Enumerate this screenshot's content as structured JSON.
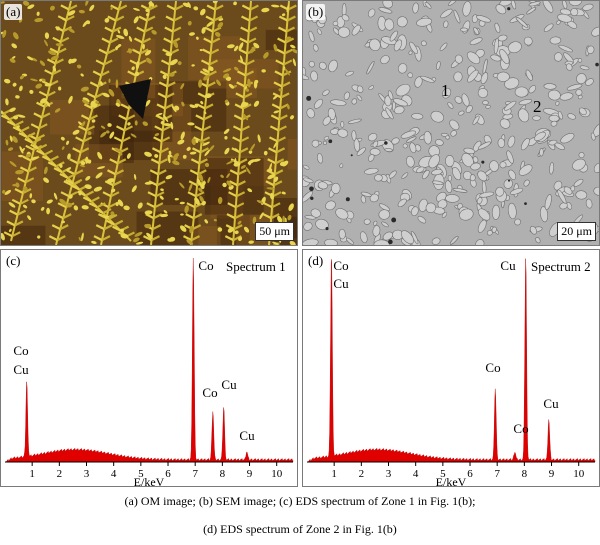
{
  "panels": {
    "a": {
      "label": "(a)",
      "scale_bar": "50 μm"
    },
    "b": {
      "label": "(b)",
      "scale_bar": "20 μm",
      "zone_1": "1",
      "zone_2": "2"
    },
    "c": {
      "label": "(c)"
    },
    "d": {
      "label": "(d)"
    }
  },
  "chart_data": [
    {
      "type": "area",
      "title": "Spectrum 1",
      "xlabel": "E/keV",
      "xlim": [
        0,
        10.6
      ],
      "xticks": [
        1,
        2,
        3,
        4,
        5,
        6,
        7,
        8,
        9,
        10
      ],
      "peaks": [
        {
          "x": 0.8,
          "height": 0.37
        },
        {
          "x": 6.93,
          "height": 1.0
        },
        {
          "x": 7.65,
          "height": 0.24
        },
        {
          "x": 8.05,
          "height": 0.26
        },
        {
          "x": 8.9,
          "height": 0.04
        }
      ],
      "peak_labels": [
        {
          "text": "Co",
          "x": 0.8,
          "line": 1
        },
        {
          "text": "Cu",
          "x": 0.8,
          "line": 2
        },
        {
          "text": "Co",
          "x": 6.93,
          "line": 0
        },
        {
          "text": "Co",
          "x": 7.5,
          "line": 0
        },
        {
          "text": "Cu",
          "x": 8.1,
          "line": 0
        },
        {
          "text": "Cu",
          "x": 8.9,
          "line": 0
        }
      ]
    },
    {
      "type": "area",
      "title": "Spectrum 2",
      "xlabel": "E/keV",
      "xlim": [
        0,
        10.6
      ],
      "xticks": [
        1,
        2,
        3,
        4,
        5,
        6,
        7,
        8,
        9,
        10
      ],
      "peaks": [
        {
          "x": 0.9,
          "height": 1.0
        },
        {
          "x": 6.93,
          "height": 0.35
        },
        {
          "x": 7.65,
          "height": 0.04
        },
        {
          "x": 8.05,
          "height": 1.0
        },
        {
          "x": 8.9,
          "height": 0.2
        }
      ],
      "peak_labels": [
        {
          "text": "Co",
          "x": 0.9,
          "line": 0
        },
        {
          "text": "Cu",
          "x": 0.9,
          "line": 1
        },
        {
          "text": "Cu",
          "x": 8.05,
          "line": 0
        },
        {
          "text": "Co",
          "x": 6.93,
          "line": 0
        },
        {
          "text": "Co",
          "x": 7.65,
          "line": 0
        },
        {
          "text": "Cu",
          "x": 8.9,
          "line": 0
        }
      ]
    }
  ],
  "colors": {
    "spectrum_fill": "#e00000",
    "dendrite": "#d9c23a",
    "matrix": "#6b4a1c"
  },
  "caption": {
    "line1": "(a) OM image; (b) SEM image; (c) EDS spectrum of Zone 1 in Fig. 1(b);",
    "line2": "(d) EDS spectrum of Zone 2 in Fig. 1(b)"
  }
}
